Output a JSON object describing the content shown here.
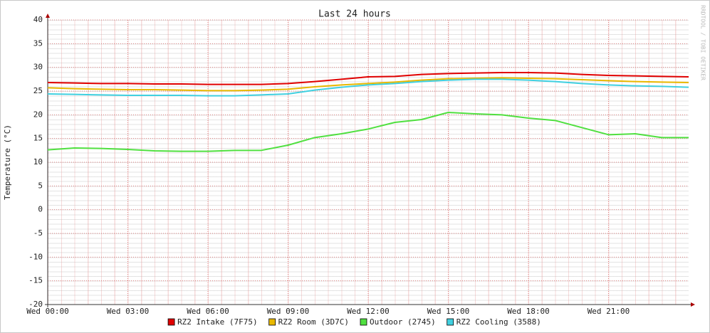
{
  "chart_data": {
    "type": "line",
    "title": "Last 24 hours",
    "y_label": "Temperature (°C)",
    "watermark": "RRDTOOL / TOBI OETIKER",
    "x": [
      0,
      1,
      2,
      3,
      4,
      5,
      6,
      7,
      8,
      9,
      10,
      11,
      12,
      13,
      14,
      15,
      16,
      17,
      18,
      19,
      20,
      21,
      22,
      23,
      24
    ],
    "xlim": [
      0,
      24
    ],
    "xticks": [
      {
        "value": 0,
        "label": "Wed 00:00"
      },
      {
        "value": 3,
        "label": "Wed 03:00"
      },
      {
        "value": 6,
        "label": "Wed 06:00"
      },
      {
        "value": 9,
        "label": "Wed 09:00"
      },
      {
        "value": 12,
        "label": "Wed 12:00"
      },
      {
        "value": 15,
        "label": "Wed 15:00"
      },
      {
        "value": 18,
        "label": "Wed 18:00"
      },
      {
        "value": 21,
        "label": "Wed 21:00"
      }
    ],
    "ylim": [
      -20,
      40
    ],
    "yticks": [
      -20,
      -15,
      -10,
      -5,
      0,
      5,
      10,
      15,
      20,
      25,
      30,
      35,
      40
    ],
    "grid": true,
    "series": [
      {
        "name": "RZ2 Intake (7F75)",
        "color": "#e00000",
        "values": [
          26.8,
          26.7,
          26.6,
          26.6,
          26.5,
          26.5,
          26.4,
          26.4,
          26.4,
          26.6,
          27.0,
          27.5,
          28.0,
          28.1,
          28.5,
          28.7,
          28.8,
          28.9,
          28.9,
          28.8,
          28.5,
          28.3,
          28.2,
          28.1,
          28.0
        ]
      },
      {
        "name": "RZ2 Room (3D7C)",
        "color": "#e8b800",
        "values": [
          25.7,
          25.5,
          25.4,
          25.3,
          25.3,
          25.2,
          25.1,
          25.1,
          25.2,
          25.4,
          25.9,
          26.3,
          26.6,
          26.9,
          27.3,
          27.6,
          27.7,
          27.8,
          27.7,
          27.6,
          27.4,
          27.2,
          27.0,
          26.9,
          26.8
        ]
      },
      {
        "name": "Outdoor (2745)",
        "color": "#50e040",
        "values": [
          12.6,
          13.0,
          12.9,
          12.7,
          12.4,
          12.3,
          12.3,
          12.5,
          12.5,
          13.6,
          15.2,
          16.0,
          17.0,
          18.4,
          19.0,
          20.5,
          20.2,
          20.0,
          19.3,
          18.8,
          17.3,
          15.8,
          16.0,
          15.2,
          15.2
        ]
      },
      {
        "name": "RZ2 Cooling (3588)",
        "color": "#40d0e0",
        "values": [
          24.4,
          24.3,
          24.2,
          24.1,
          24.1,
          24.1,
          24.0,
          24.0,
          24.2,
          24.4,
          25.2,
          25.8,
          26.3,
          26.6,
          27.0,
          27.3,
          27.5,
          27.5,
          27.3,
          27.0,
          26.6,
          26.3,
          26.1,
          26.0,
          25.8
        ]
      }
    ]
  }
}
